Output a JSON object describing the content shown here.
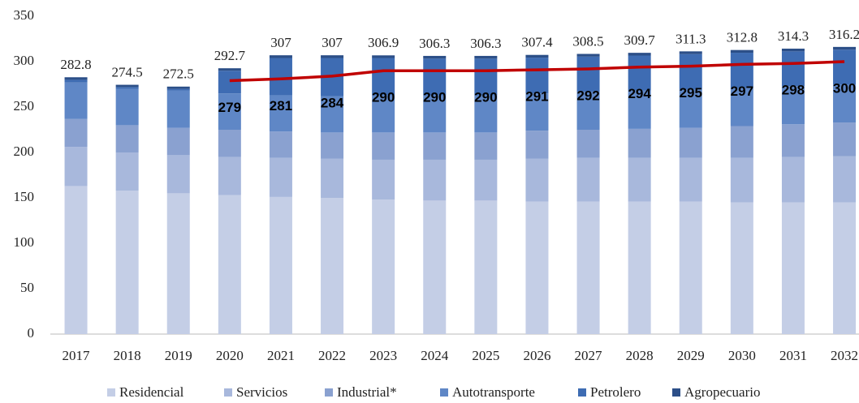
{
  "chart_data": {
    "type": "stacked_bar_line",
    "categories": [
      "2017",
      "2018",
      "2019",
      "2020",
      "2021",
      "2022",
      "2023",
      "2024",
      "2025",
      "2026",
      "2027",
      "2028",
      "2029",
      "2030",
      "2031",
      "2032"
    ],
    "series": [
      {
        "name": "Residencial",
        "color": "#c4cee6",
        "values": [
          163,
          158,
          155,
          153,
          151,
          150,
          148,
          147,
          147,
          146,
          146,
          146,
          146,
          145,
          145,
          145
        ]
      },
      {
        "name": "Servicios",
        "color": "#a8b8dc",
        "values": [
          43,
          42,
          42,
          42,
          43,
          43,
          44,
          45,
          45,
          47,
          48,
          48,
          48,
          49,
          50,
          51
        ]
      },
      {
        "name": "Industrial*",
        "color": "#8aa1d0",
        "values": [
          31,
          30,
          30,
          30,
          29,
          29,
          30,
          30,
          30,
          31,
          31,
          32,
          33,
          35,
          36,
          37
        ]
      },
      {
        "name": "Autotransporte",
        "color": "#5f87c6",
        "values": [
          40,
          40,
          41,
          40,
          40,
          40,
          41,
          41,
          41,
          41,
          42,
          42,
          42,
          42,
          42,
          42
        ]
      },
      {
        "name": "Petrolero",
        "color": "#3e6cb3",
        "values": [
          3,
          2,
          2,
          25,
          41,
          42,
          41,
          40.3,
          40.3,
          39.4,
          38.5,
          38.7,
          39.3,
          38.8,
          38.3,
          38.2
        ]
      },
      {
        "name": "Agropecuario",
        "color": "#2c4f88",
        "values": [
          2.8,
          2.5,
          2.5,
          2.7,
          3,
          3,
          2.9,
          3,
          3,
          3,
          3,
          3,
          3,
          3,
          3,
          3
        ]
      }
    ],
    "totals": [
      282.8,
      274.5,
      272.5,
      292.7,
      307,
      307,
      306.9,
      306.3,
      306.3,
      307.4,
      308.5,
      309.7,
      311.3,
      312.8,
      314.3,
      316.2
    ],
    "line": {
      "color": "#c00000",
      "values": [
        null,
        null,
        null,
        279,
        281,
        284,
        290,
        290,
        290,
        291,
        292,
        294,
        295,
        297,
        298,
        300
      ]
    },
    "ylim": [
      0,
      350
    ],
    "yticks": [
      0,
      50,
      100,
      150,
      200,
      250,
      300,
      350
    ],
    "grid": false
  }
}
